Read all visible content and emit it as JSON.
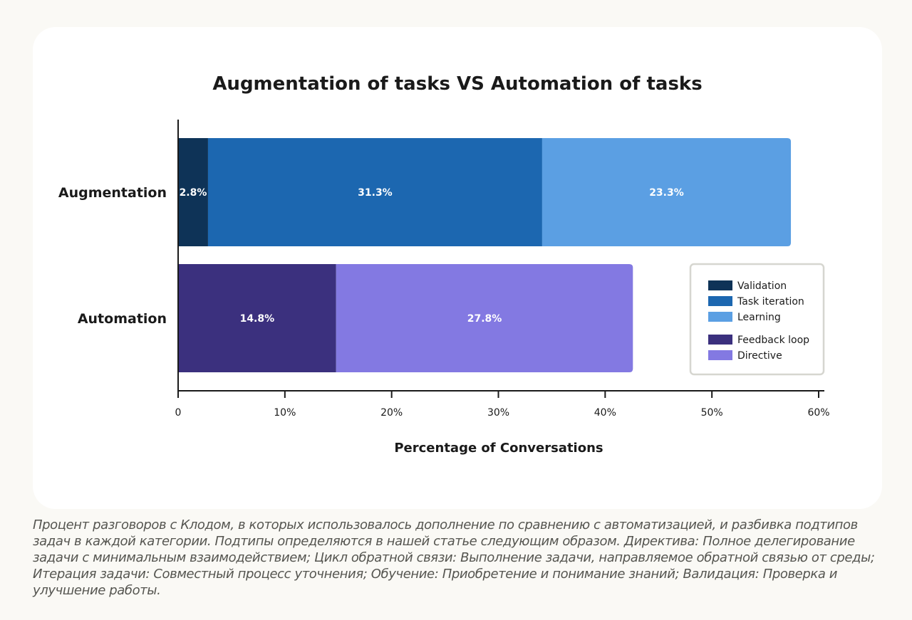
{
  "chart_data": {
    "type": "bar",
    "orientation": "horizontal",
    "stacked": true,
    "title": "Augmentation of tasks VS Automation of tasks",
    "xlabel": "Percentage of Conversations",
    "ylabel": "",
    "xlim": [
      0,
      60
    ],
    "x_ticks": [
      0,
      10,
      20,
      30,
      40,
      50,
      60
    ],
    "x_tick_labels": [
      "0",
      "10%",
      "20%",
      "30%",
      "40%",
      "50%",
      "60%"
    ],
    "grid": false,
    "legend_placement": "right",
    "categories": [
      "Augmentation",
      "Automation"
    ],
    "series": [
      {
        "name": "Validation",
        "color": "#0e3357",
        "values": [
          2.8,
          0
        ],
        "labels": [
          "2.8%",
          ""
        ]
      },
      {
        "name": "Task iteration",
        "color": "#1c67b0",
        "values": [
          31.3,
          0
        ],
        "labels": [
          "31.3%",
          ""
        ]
      },
      {
        "name": "Learning",
        "color": "#5b9fe3",
        "values": [
          23.3,
          0
        ],
        "labels": [
          "23.3%",
          ""
        ]
      },
      {
        "name": "Feedback loop",
        "color": "#3b307e",
        "values": [
          0,
          14.8
        ],
        "labels": [
          "",
          "14.8%"
        ]
      },
      {
        "name": "Directive",
        "color": "#8379e2",
        "values": [
          0,
          27.8
        ],
        "labels": [
          "",
          "27.8%"
        ]
      }
    ]
  },
  "caption": "Процент разговоров с Клодом, в которых использовалось дополнение по сравнению с автоматизацией, и разбивка подтипов задач в каждой категории. Подтипы определяются в нашей статье следующим образом. Директива: Полное делегирование задачи с минимальным взаимодействием; Цикл обратной связи: Выполнение задачи, направляемое обратной связью от среды; Итерация задачи: Совместный процесс уточнения; Обучение: Приобретение и понимание знаний; Валидация: Проверка и улучшение работы."
}
